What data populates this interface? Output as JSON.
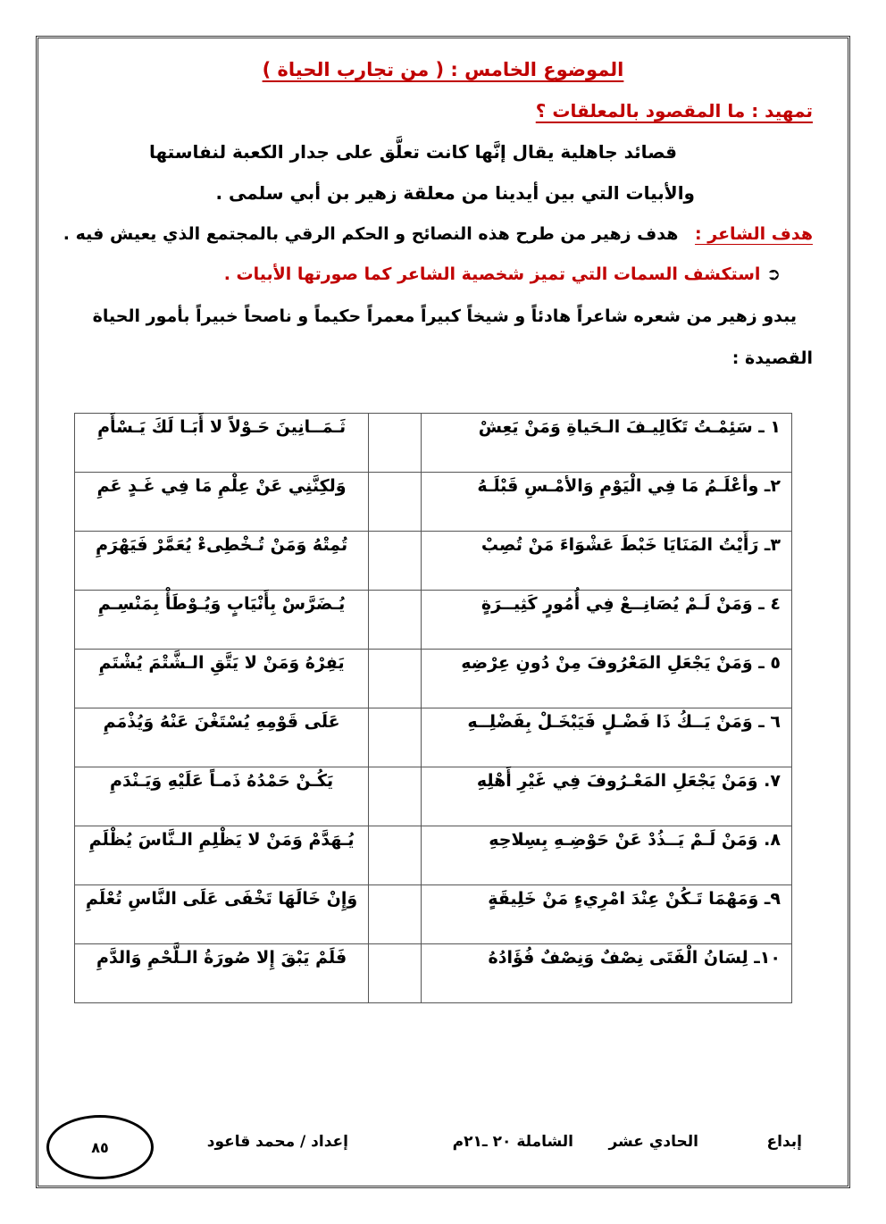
{
  "title": "الموضوع الخامس :  ( من تجارب الحياة )",
  "intro_heading": "تمهيد :  ما المقصود بالمعلقات ؟",
  "intro_lines": [
    "قصائد جاهلية يقال إنَّها كانت تعلَّق على جدار الكعبة لنفاستها",
    "والأبيات التي بين أيدينا من معلقة زهير بن أبي سلمى ."
  ],
  "goal_label": "هدف الشاعر :",
  "goal_text": "هدف زهير من طرح هذه النصائح و الحكم الرقي بالمجتمع الذي يعيش فيه .",
  "task_text": "استكشف  السمات  التي تميز شخصية الشاعر كما صورتها الأبيات    .",
  "answer_text": "يبدو زهير من شعره شاعراً هادئاً و شيخاً كبيراً معمراً  حكيماً و ناصحاً خبيراً بأمور الحياة",
  "poem_label": "القصيدة :",
  "poem": [
    {
      "first": "١ ـ  سَئِمْـتُ تَكَالِيـفَ الـحَياةِ وَمَنْ يَعِشْ",
      "second": "ثَـمَــانِينَ حَـوْلاً لا أَبَـا لَكَ يَـسْأَمِ"
    },
    {
      "first": "٢ـ  وأعْلَـمُ مَا فِي الْيَوْمِ وَالأمْـسِ قَبْلَـهُ",
      "second": "وَلكِنَّنِي عَنْ عِلْمِ مَا فِي غَـدٍ عَمِ"
    },
    {
      "first": "٣ـ   رَأَيْتُ المَنَايَا خَبْطَ عَشْوَاءَ مَنْ تُصِبْ",
      "second": "تُمِتْهُ وَمَنْ تُـخْطِىءْ يُعَمَّرْ فَيَهْرَمِ"
    },
    {
      "first": "٤ ـ   وَمَنْ لَـمْ يُصَانِــعْ فِي أُمُورٍ كَثِيــرَةٍ",
      "second": "يُـضَرَّسْ بِأَنْيَابٍ وَيُـوْطَأْ بِمَنْسِـمِ"
    },
    {
      "first": "٥ ـ  وَمَنْ يَجْعَلِ المَعْرُوفَ مِنْ دُونِ عِرْضِهِ",
      "second": "يَفِرْهُ وَمَنْ لا يَتَّقِ الـشَّتْمَ يُشْتَمِ"
    },
    {
      "first": "٦ ـ  وَمَنْ يَــكُ ذَا فَضْـلٍ فَيَبْخَـلْ بِفَضْلِــهِ",
      "second": "عَلَى قَوْمِهِ يُسْتَغْنَ عَنْهُ وَيُذْمَمِ"
    },
    {
      "first": "٧.    وَمَنْ يَجْعَلِ المَعْـرُوفَ فِي غَيْرِ أَهْلِهِ",
      "second": "يَكُـنْ حَمْدُهُ ذَمـاً عَلَيْهِ وَيَـنْدَمِ"
    },
    {
      "first": "٨.   وَمَنْ لَـمْ يَــذُدْ عَنْ حَوْضِـهِ بِسِلاحِهِ",
      "second": "يُـهَدَّمْ وَمَنْ لا يَظْلِمِ الـنَّاسَ يُظْلَمِ"
    },
    {
      "first": "٩ـ   وَمَهْمَا تَـكُنْ عِنْدَ امْرِيءٍ مَنْ خَلِيقَةٍ",
      "second": "وَإِنْ خَالَهَا تَخْفَى عَلَى النَّاسِ تُعْلَمِ"
    },
    {
      "first": "١٠ـ    لِسَانُ الْفَتَى نِصْفٌ وَنِصْفٌ فُؤَادُهُ",
      "second": "فَلَمْ يَبْقَ إِلا صُورَةُ الـلَّحْمِ وَالدَّمِ"
    }
  ],
  "footer": {
    "ibdaa": "إبداع",
    "grade": "الحادي عشر",
    "edition": "الشاملة ٢٠ ـ٢١م",
    "author": "إعداد / محمد قاعود",
    "page_number": "٨٥"
  },
  "colors": {
    "heading": "#c00000"
  }
}
